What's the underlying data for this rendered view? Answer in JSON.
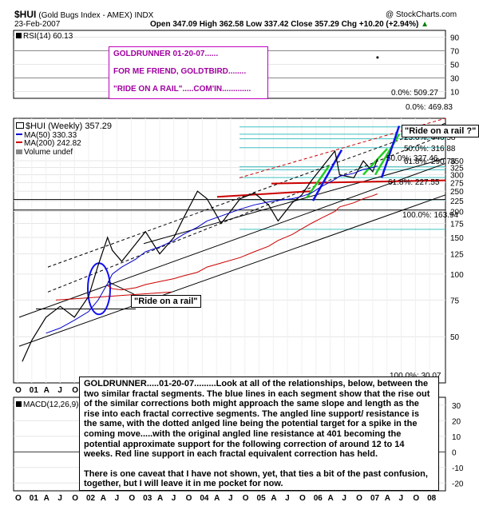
{
  "header": {
    "symbol": "$HUI",
    "name": "(Gold Bugs Index - AMEX) INDX",
    "copyright": "@ StockCharts.com",
    "date": "23-Feb-2007",
    "ohlc": "Open 347.09  High 362.58  Low 337.42  Close 357.29  Chg +10.20 (+2.94%)",
    "change_icon": "up-triangle-icon"
  },
  "rsi_panel": {
    "label": "RSI(14) 60.13",
    "ticks": [
      "90",
      "70",
      "50",
      "30",
      "10"
    ],
    "annotation_lines": [
      "GOLDRUNNER 01-20-07......",
      "FOR ME FRIEND, GOLDTBIRD........",
      "\"RIDE ON A RAIL\".....COM'IN............."
    ]
  },
  "price_panel": {
    "legend": [
      "$HUI (Weekly) 357.29",
      "MA(50) 330.33",
      "MA(200) 242.82",
      "Volume undef"
    ],
    "ticks": [
      "350",
      "325",
      "300",
      "275",
      "250",
      "225",
      "200",
      "175",
      "150",
      "125",
      "100",
      "75",
      "50"
    ],
    "fib_labels": [
      "0.0%: 509.27",
      "0.0%: 469.83",
      "23.6%: 446.58",
      "38.2%: 404.79",
      "50.0%: 316.88",
      "50.0%: 327.46",
      "61.8%: 290.76",
      "61.8%: 227.55",
      "100.0%: 163.94",
      "100.0%: 30.07"
    ],
    "callouts": [
      "\"Ride on a rail ?\"",
      "\"Ride on a rail\""
    ],
    "note": [
      "GOLDRUNNER.....01-20-07.........Look at all of the relationships, below, between the two similar fractal segments.  The blue lines in each segment show that the rise out of the similar corrections both might approach the same slope and length as the rise into each fractal corrective segments.  The angled line support/ resistance is the same, with the dotted anlged line being the potential target for a spike in the coming move.....with the original angled line resistance at 401 becoming the potential approximate support for the following correction of around 12 to 14 weeks.   Red line support in each fractal equivalent correction has held.",
      "There is one caveat that I have not shown, yet, that ties a bit of the past confusion, together, but I will leave it in me pocket for now."
    ]
  },
  "macd_panel": {
    "label": "MACD(12,26,9)",
    "ticks": [
      "30",
      "20",
      "10",
      "0",
      "-10",
      "-20"
    ]
  },
  "x_axis": {
    "labels": [
      "O",
      "01",
      "A",
      "J",
      "O",
      "02",
      "A",
      "J",
      "O",
      "03",
      "A",
      "J",
      "O",
      "04",
      "A",
      "J",
      "O",
      "05",
      "A",
      "J",
      "O",
      "06",
      "A",
      "J",
      "O",
      "07",
      "A",
      "J",
      "O",
      "08"
    ]
  },
  "colors": {
    "price": "#000000",
    "ma50": "#0000cc",
    "ma200": "#cc0000",
    "rail_green": "#22cc22",
    "rail_blue": "#1111ee",
    "fib": "#40c0c0",
    "support_red": "#cc0000",
    "annotation_magenta": "#a000a0"
  },
  "chart_data": {
    "type": "line",
    "title": "$HUI (Gold Bugs Index - AMEX) INDX",
    "xlabel": "",
    "ylabel": "",
    "yscale": "log",
    "ylim": [
      30,
      560
    ],
    "x": [
      "2000-11",
      "2001-01",
      "2001-04",
      "2001-07",
      "2001-10",
      "2002-01",
      "2002-03",
      "2002-05",
      "2002-06",
      "2002-08",
      "2002-11",
      "2003-01",
      "2003-04",
      "2003-07",
      "2003-09",
      "2003-12",
      "2004-02",
      "2004-05",
      "2004-09",
      "2004-12",
      "2005-03",
      "2005-05",
      "2005-08",
      "2005-10",
      "2005-12",
      "2006-02",
      "2006-05",
      "2006-06",
      "2006-09",
      "2006-11",
      "2007-01",
      "2007-02"
    ],
    "series": [
      {
        "name": "$HUI (Weekly)",
        "values": [
          38,
          48,
          62,
          70,
          62,
          78,
          110,
          150,
          130,
          115,
          140,
          160,
          125,
          150,
          185,
          250,
          230,
          175,
          230,
          245,
          215,
          180,
          220,
          240,
          280,
          320,
          390,
          300,
          290,
          350,
          310,
          357.29
        ]
      },
      {
        "name": "MA(50)",
        "values": [
          null,
          null,
          52,
          55,
          60,
          66,
          75,
          90,
          100,
          108,
          118,
          128,
          135,
          145,
          155,
          168,
          180,
          190,
          205,
          215,
          222,
          226,
          230,
          236,
          245,
          262,
          285,
          295,
          305,
          318,
          325,
          330.33
        ]
      },
      {
        "name": "MA(200)",
        "values": [
          null,
          null,
          null,
          null,
          null,
          null,
          null,
          88,
          85,
          84,
          86,
          89,
          92,
          95,
          98,
          102,
          108,
          113,
          120,
          128,
          136,
          145,
          155,
          165,
          175,
          185,
          200,
          210,
          220,
          230,
          238,
          242.82
        ]
      }
    ],
    "rsi": {
      "label": "RSI(14)",
      "last": 60.13,
      "ylim": [
        0,
        100
      ]
    },
    "macd": {
      "label": "MACD(12,26,9)",
      "ylim": [
        -25,
        35
      ]
    }
  }
}
